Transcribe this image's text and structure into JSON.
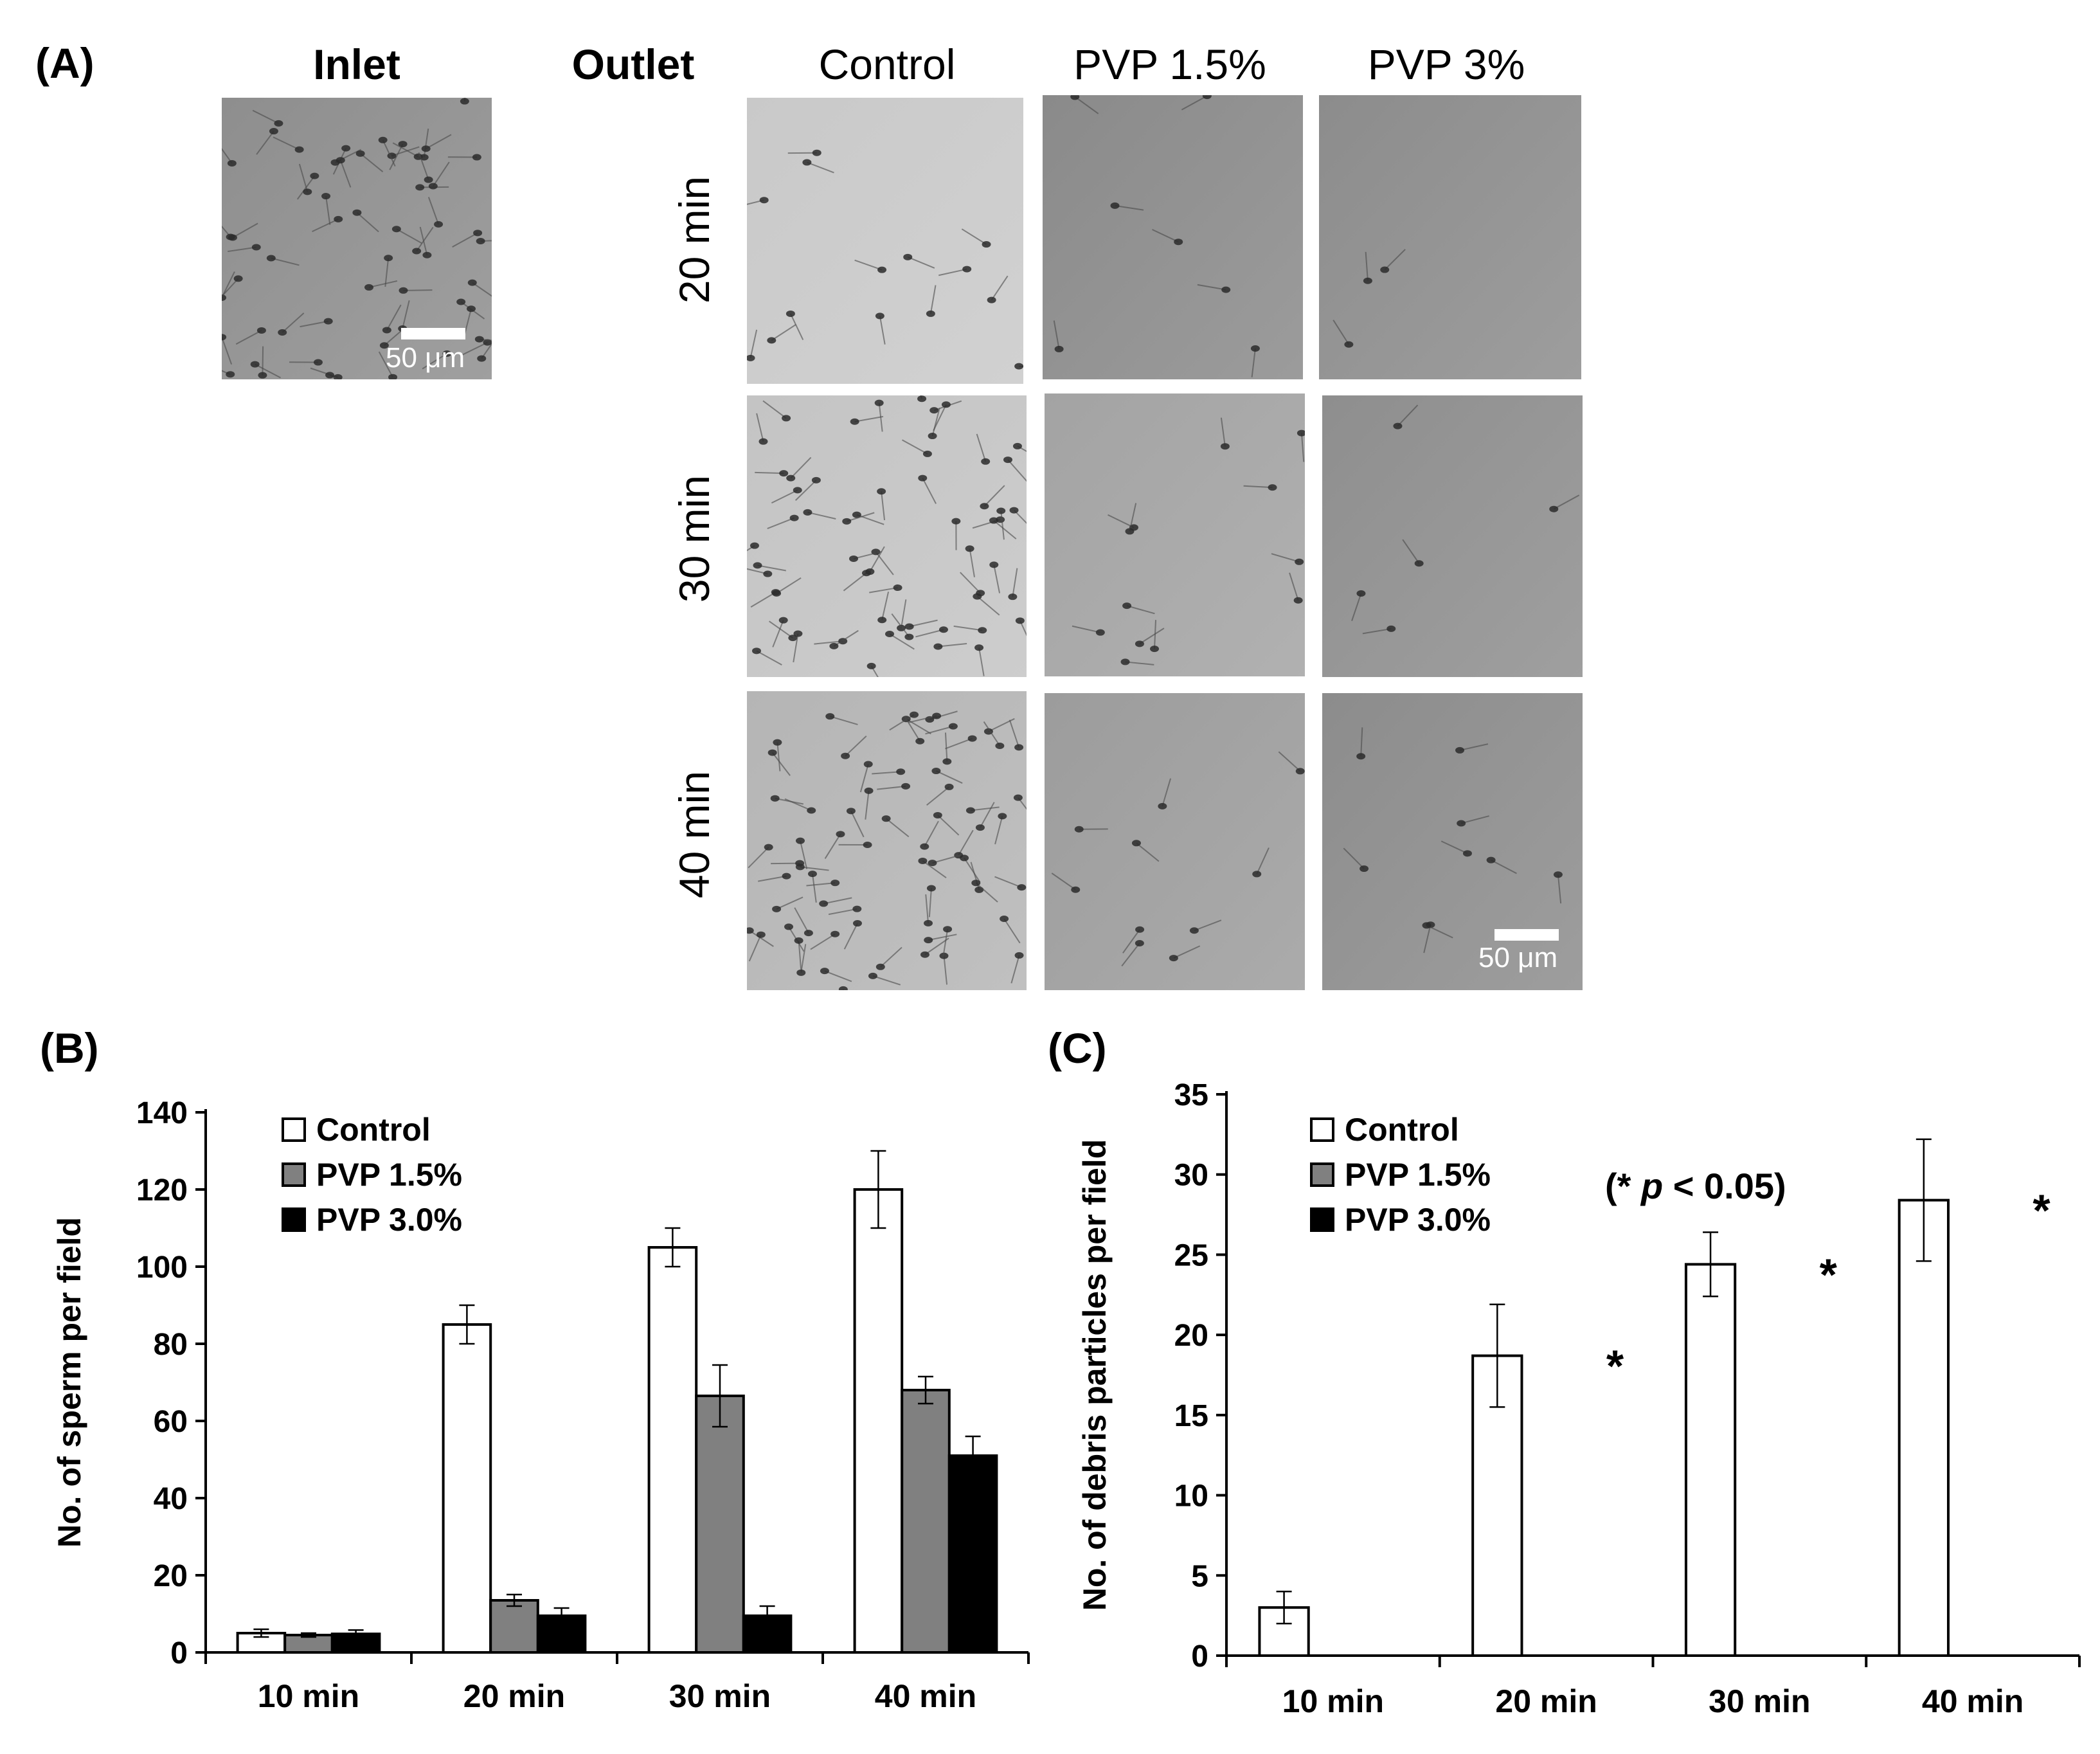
{
  "panelA": {
    "label": "(A)",
    "inlet_label": "Inlet",
    "outlet_label": "Outlet",
    "columns": [
      "Control",
      "PVP 1.5%",
      "PVP 3%"
    ],
    "rows": [
      "20 min",
      "30 min",
      "40 min"
    ],
    "scale_bar_text": "50 μm",
    "micrographs": [
      {
        "id": "inlet",
        "tone": "#8e8e8e",
        "sperm": 60
      },
      {
        "id": "control-20",
        "tone": "#c9c9c9",
        "sperm": 14
      },
      {
        "id": "pvp15-20",
        "tone": "#8a8a8a",
        "sperm": 7
      },
      {
        "id": "pvp3-20",
        "tone": "#8c8c8c",
        "sperm": 3
      },
      {
        "id": "control-30",
        "tone": "#c4c4c4",
        "sperm": 60
      },
      {
        "id": "pvp15-30",
        "tone": "#a3a3a3",
        "sperm": 12
      },
      {
        "id": "pvp3-30",
        "tone": "#8e8e8e",
        "sperm": 5
      },
      {
        "id": "control-40",
        "tone": "#b5b5b5",
        "sperm": 70
      },
      {
        "id": "pvp15-40",
        "tone": "#9c9c9c",
        "sperm": 10
      },
      {
        "id": "pvp3-40",
        "tone": "#8c8c8c",
        "sperm": 9
      }
    ]
  },
  "chart_data": [
    {
      "panel_label": "(B)",
      "type": "bar",
      "ylabel": "No. of sperm per field",
      "xlabel": "",
      "categories": [
        "10 min",
        "20 min",
        "30 min",
        "40 min"
      ],
      "ylim": [
        0,
        140
      ],
      "yticks": [
        0,
        20,
        40,
        60,
        80,
        100,
        120,
        140
      ],
      "legend_position": "top-left",
      "series": [
        {
          "name": "Control",
          "color": "#ffffff",
          "values": [
            5,
            85,
            105,
            120
          ],
          "errors": [
            1,
            5,
            5,
            10
          ]
        },
        {
          "name": "PVP 1.5%",
          "color": "#808080",
          "values": [
            4.5,
            13.5,
            66.5,
            68
          ],
          "errors": [
            0.5,
            1.5,
            8,
            3.5
          ]
        },
        {
          "name": "PVP 3.0%",
          "color": "#000000",
          "values": [
            4.8,
            9.5,
            9.5,
            51
          ],
          "errors": [
            1,
            2,
            2.5,
            5
          ]
        }
      ]
    },
    {
      "panel_label": "(C)",
      "type": "bar",
      "ylabel": "No. of debris particles per field",
      "xlabel": "",
      "categories": [
        "10 min",
        "20 min",
        "30 min",
        "40 min"
      ],
      "ylim": [
        0,
        35
      ],
      "yticks": [
        0,
        5,
        10,
        15,
        20,
        25,
        30,
        35
      ],
      "legend_position": "top-left",
      "annotation": {
        "prefix": "(* ",
        "italic": "p",
        "suffix": " < 0.05)"
      },
      "significance": [
        "",
        "*",
        "*",
        "*"
      ],
      "series": [
        {
          "name": "Control",
          "color": "#ffffff",
          "values": [
            3,
            18.7,
            24.4,
            28.4
          ],
          "errors": [
            1,
            3.2,
            2,
            3.8
          ]
        },
        {
          "name": "PVP 1.5%",
          "color": "#808080",
          "values": [
            0,
            0,
            0,
            0
          ],
          "errors": [
            0,
            0,
            0,
            0
          ]
        },
        {
          "name": "PVP 3.0%",
          "color": "#000000",
          "values": [
            0,
            0,
            0,
            0
          ],
          "errors": [
            0,
            0,
            0,
            0
          ]
        }
      ]
    }
  ]
}
